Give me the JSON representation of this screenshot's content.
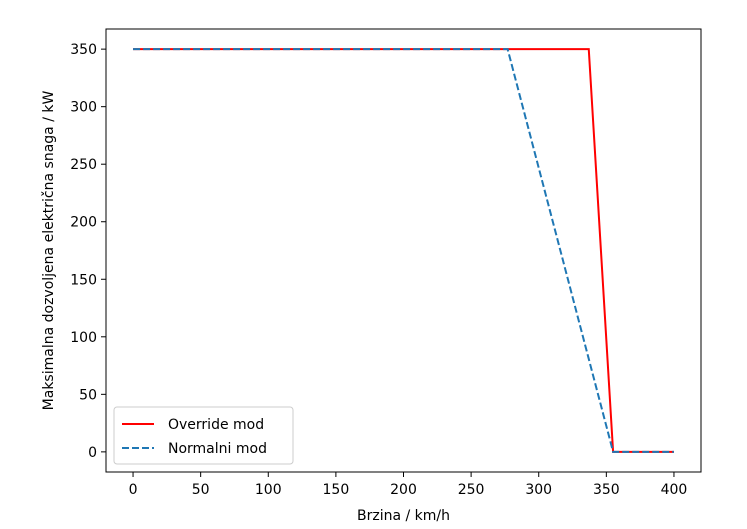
{
  "chart_data": {
    "type": "line",
    "title": "",
    "xlabel": "Brzina / km/h",
    "ylabel": "Maksimalna dozvoljena električna snaga / kW",
    "xlim": [
      -20,
      420
    ],
    "ylim": [
      -17.5,
      367.5
    ],
    "xticks": [
      0,
      50,
      100,
      150,
      200,
      250,
      300,
      350,
      400
    ],
    "yticks": [
      0,
      50,
      100,
      150,
      200,
      250,
      300,
      350
    ],
    "grid": false,
    "legend_position": "lower-left",
    "series": [
      {
        "name": "Override mod",
        "color": "#ff0000",
        "style": "solid",
        "x": [
          0,
          337,
          355,
          400
        ],
        "y": [
          350,
          350,
          0,
          0
        ]
      },
      {
        "name": "Normalni mod",
        "color": "#1f77b4",
        "style": "dashed",
        "x": [
          0,
          277,
          355,
          400
        ],
        "y": [
          350,
          350,
          0,
          0
        ]
      }
    ]
  }
}
